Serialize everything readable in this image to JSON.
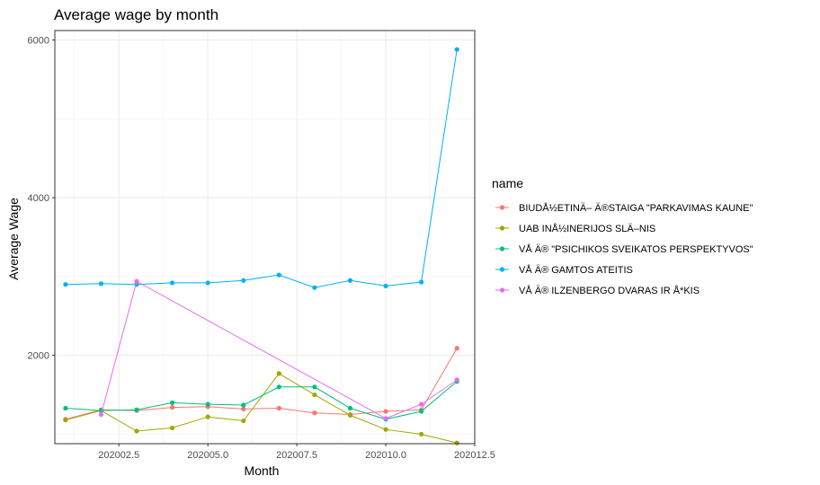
{
  "chart_data": {
    "type": "line",
    "title": "Average wage by month",
    "xlabel": "Month",
    "ylabel": "Average Wage",
    "xlim": [
      202000.7,
      202012.5
    ],
    "ylim": [
      880,
      6120
    ],
    "x_ticks": [
      202002.5,
      202005.0,
      202007.5,
      202010.0,
      202012.5
    ],
    "x_tick_labels": [
      "202002.5",
      "202005.0",
      "202007.5",
      "202010.0",
      "202012.5"
    ],
    "y_ticks": [
      2000,
      4000,
      6000
    ],
    "y_tick_labels": [
      "2000",
      "4000",
      "6000"
    ],
    "grid": true,
    "legend_title": "name",
    "legend_position": "right",
    "series": [
      {
        "name": "BIUDÅ½ETINÄ– Ä®STAIGA \"PARKAVIMAS KAUNE\"",
        "color": "#F8766D",
        "x": [
          202001,
          202002,
          202003,
          202004,
          202005,
          202006,
          202007,
          202008,
          202009,
          202010,
          202011,
          202012
        ],
        "values": [
          1190,
          1310,
          1300,
          1340,
          1350,
          1320,
          1330,
          1270,
          1250,
          1290,
          1310,
          2090
        ]
      },
      {
        "name": "UAB INÅ½INERIJOS SLÄ–NIS",
        "color": "#A3A500",
        "x": [
          202001,
          202002,
          202003,
          202004,
          202005,
          202006,
          202007,
          202008,
          202009,
          202010,
          202011,
          202012
        ],
        "values": [
          1180,
          1300,
          1040,
          1080,
          1220,
          1170,
          1770,
          1500,
          1240,
          1060,
          1000,
          890
        ]
      },
      {
        "name": "VÅ Ä® \"PSICHIKOS SVEIKATOS PERSPEKTYVOS\"",
        "color": "#00BF7D",
        "x": [
          202001,
          202002,
          202003,
          202004,
          202005,
          202006,
          202007,
          202008,
          202009,
          202010,
          202011,
          202012
        ],
        "values": [
          1330,
          1300,
          1310,
          1400,
          1380,
          1370,
          1600,
          1600,
          1330,
          1190,
          1290,
          1670
        ]
      },
      {
        "name": "VÅ Ä® GAMTOS ATEITIS",
        "color": "#00B0F6",
        "x": [
          202001,
          202002,
          202003,
          202004,
          202005,
          202006,
          202007,
          202008,
          202009,
          202010,
          202011,
          202012
        ],
        "values": [
          2900,
          2910,
          2900,
          2920,
          2920,
          2950,
          3020,
          2860,
          2950,
          2880,
          2930,
          5880
        ]
      },
      {
        "name": "VÅ Ä® ILZENBERGO DVARAS IR Å*KIS",
        "color": "#E76BF3",
        "x": [
          202002,
          202003,
          202010,
          202011,
          202012
        ],
        "values": [
          1250,
          2940,
          1200,
          1380,
          1690
        ]
      }
    ]
  }
}
